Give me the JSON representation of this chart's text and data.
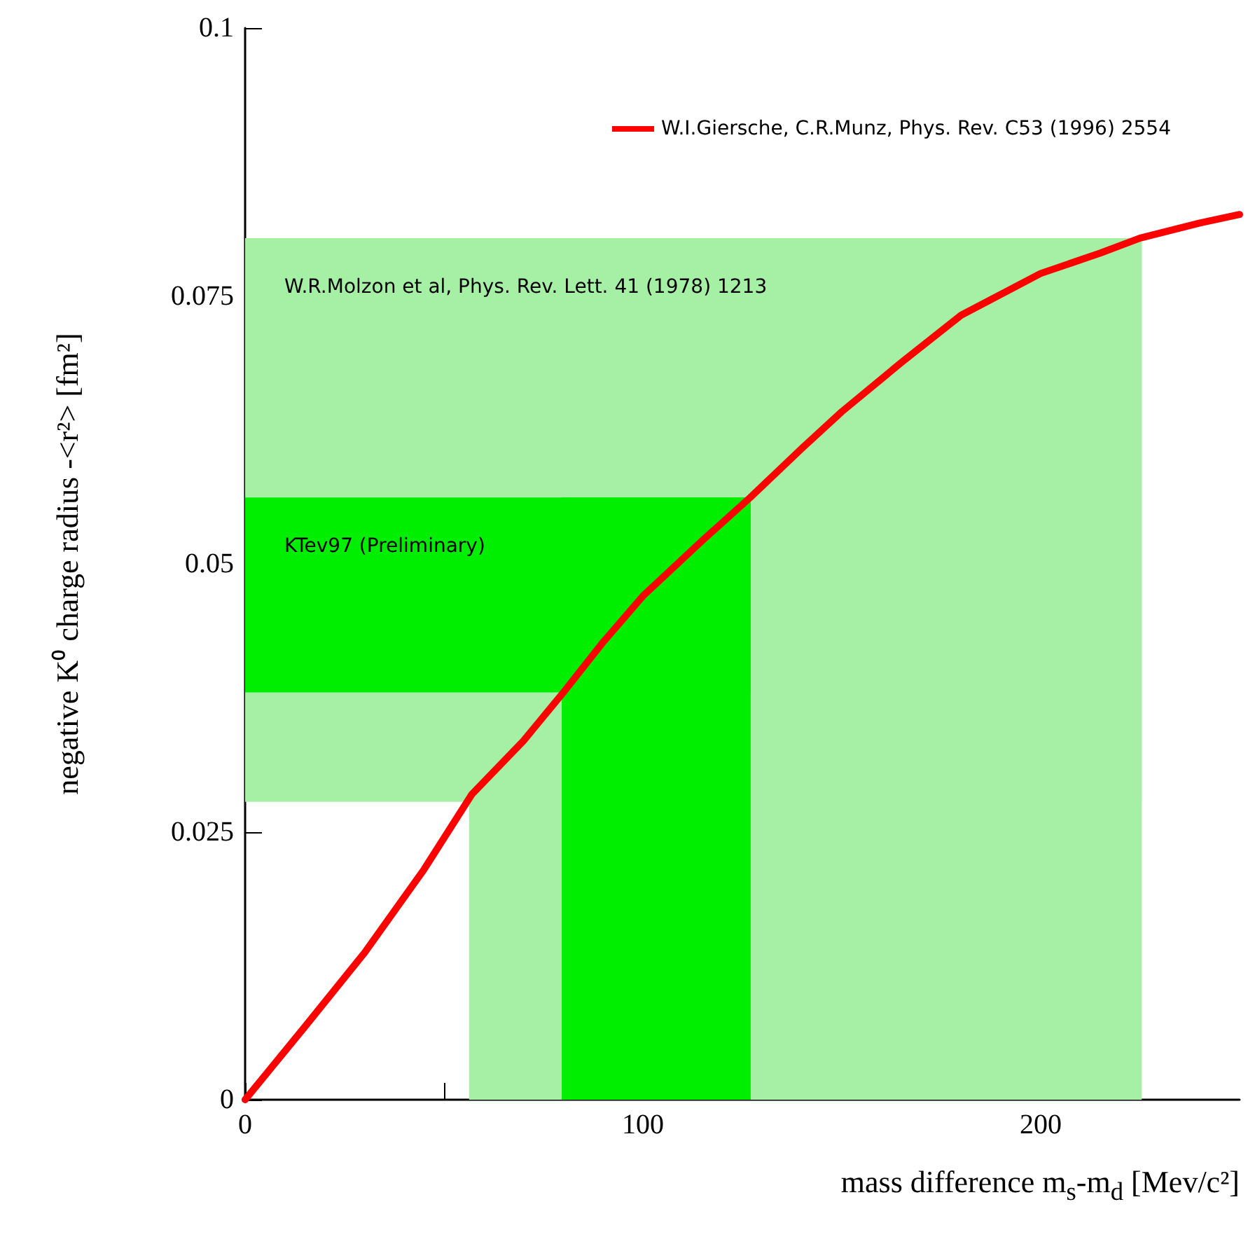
{
  "chart_data": {
    "type": "line",
    "xlabel": "mass difference m$_{s}$-m$_{d}$ [Mev/c²]",
    "ylabel": "negative K⁰ charge radius -<r²> [fm²]",
    "x": [
      0,
      15,
      30,
      45,
      57,
      70,
      80,
      90,
      100,
      115,
      127,
      140,
      150,
      165,
      180,
      200,
      215,
      225,
      240,
      250
    ],
    "series": [
      {
        "name": "W.I.Giersche, C.R.Munz, Phys. Rev. C53 (1996) 2554",
        "color": "#ff0000",
        "values": [
          0,
          0.0068,
          0.0137,
          0.0215,
          0.0285,
          0.0335,
          0.038,
          0.0427,
          0.047,
          0.0522,
          0.0562,
          0.0608,
          0.0642,
          0.0688,
          0.0732,
          0.0771,
          0.079,
          0.0804,
          0.0818,
          0.0826
        ]
      }
    ],
    "bands": [
      {
        "axis": "x",
        "from": 56.3,
        "to": 225.4,
        "color": "#a6f0a6"
      },
      {
        "axis": "y",
        "from": 0.0278,
        "to": 0.0804,
        "color": "#a6f0a6",
        "label": "W.R.Molzon et al, Phys. Rev. Lett. 41 (1978) 1213"
      },
      {
        "axis": "x",
        "from": 79.6,
        "to": 127.1,
        "color": "#00ee00"
      },
      {
        "axis": "y",
        "from": 0.038,
        "to": 0.0562,
        "color": "#00ee00",
        "label": "KTev97 (Preliminary)"
      }
    ],
    "xlim": [
      0,
      250
    ],
    "xticks": [
      0,
      {
        "value": 50,
        "label": null
      },
      100,
      {
        "value": 150,
        "label": null
      },
      200
    ],
    "ylim": [
      0,
      0.1
    ],
    "yticks": [
      0,
      0.025,
      0.05,
      0.075,
      0.1
    ],
    "legend": "top right",
    "grid": false,
    "marker": "none",
    "line_style": "solid"
  }
}
